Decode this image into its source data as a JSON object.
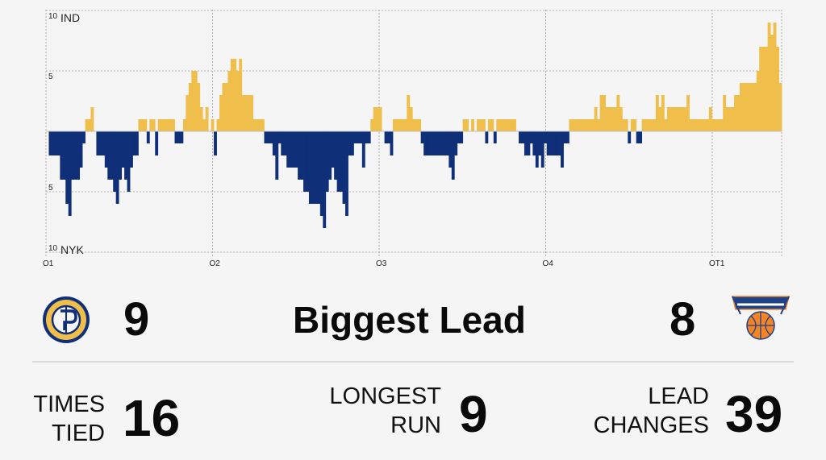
{
  "chart_data": {
    "type": "bar",
    "title": "",
    "xlabel": "",
    "ylabel": "",
    "top_team_label": "IND",
    "bottom_team_label": "NYK",
    "ylim": [
      -10,
      10
    ],
    "y_ticks": [
      {
        "value": 10,
        "label": "10"
      },
      {
        "value": 5,
        "label": "5"
      },
      {
        "value": -5,
        "label": "5"
      },
      {
        "value": -10,
        "label": "10"
      }
    ],
    "x_range_minutes": [
      0,
      53
    ],
    "period_ticks": [
      {
        "minute": 0,
        "label": "Q1"
      },
      {
        "minute": 12,
        "label": "Q2"
      },
      {
        "minute": 24,
        "label": "Q3"
      },
      {
        "minute": 36,
        "label": "Q4"
      },
      {
        "minute": 48,
        "label": "OT1"
      }
    ],
    "grid": true,
    "ind_color": "#F0BE4B",
    "nyk_color": "#0F2F78",
    "margin": [
      0,
      -2,
      -2,
      -2,
      -2,
      -4,
      -4,
      -6,
      -7,
      -4,
      -4,
      -4,
      -3,
      -1,
      1,
      1,
      2,
      0,
      -2,
      -2,
      -2,
      -3,
      -4,
      -4,
      -5,
      -6,
      -4,
      -3,
      -4,
      -5,
      -3,
      -2,
      -2,
      1,
      1,
      1,
      -1,
      1,
      1,
      -2,
      1,
      1,
      1,
      1,
      1,
      1,
      -1,
      -1,
      -1,
      1,
      3,
      4,
      5,
      5,
      4,
      2,
      1,
      2,
      0,
      1,
      -2,
      1,
      3,
      4,
      4,
      5,
      6,
      6,
      5,
      6,
      3,
      3,
      3,
      3,
      1,
      1,
      1,
      1,
      -1,
      -1,
      -1,
      -2,
      -4,
      -1,
      -2,
      -2,
      -3,
      -3,
      -3,
      -3,
      -4,
      -4,
      -5,
      -5,
      -6,
      -6,
      -6,
      -6,
      -7,
      -8,
      -5,
      -4,
      -3,
      -4,
      -5,
      -5,
      -6,
      -7,
      -2,
      -2,
      -1,
      -1,
      -1,
      -3,
      -1,
      -1,
      1,
      2,
      2,
      2,
      0,
      -1,
      -1,
      -2,
      1,
      1,
      1,
      1,
      1,
      3,
      2,
      1,
      1,
      1,
      -1,
      -2,
      -2,
      -2,
      -2,
      -2,
      -2,
      -2,
      -2,
      -2,
      -3,
      -4,
      -2,
      -1,
      -1,
      1,
      1,
      0,
      1,
      0,
      1,
      1,
      1,
      -1,
      1,
      1,
      -1,
      1,
      1,
      1,
      1,
      1,
      1,
      1,
      0,
      -1,
      -1,
      -2,
      -2,
      -1,
      -2,
      -3,
      -2,
      -3,
      -1,
      -2,
      -2,
      -2,
      -2,
      -2,
      -3,
      -1,
      -1,
      1,
      1,
      1,
      1,
      1,
      1,
      1,
      1,
      1,
      2,
      1,
      3,
      3,
      2,
      2,
      2,
      2,
      3,
      2,
      1,
      1,
      -1,
      1,
      1,
      -1,
      -1,
      1,
      1,
      1,
      1,
      1,
      3,
      2,
      3,
      1,
      2,
      2,
      2,
      2,
      2,
      2,
      2,
      3,
      1,
      1,
      1,
      1,
      1,
      1,
      1,
      2,
      1,
      1,
      1,
      1,
      3,
      2,
      2,
      2,
      3,
      3,
      4,
      4,
      4,
      4,
      4,
      4,
      5,
      7,
      7,
      7,
      9,
      8,
      9,
      7,
      4
    ]
  },
  "teams": {
    "home": {
      "logo_icon": "pacers-logo",
      "biggest_lead": "9"
    },
    "away": {
      "logo_icon": "knicks-logo",
      "biggest_lead": "8"
    }
  },
  "stats": {
    "biggest_lead_label": "Biggest Lead",
    "times_tied_label_1": "TIMES",
    "times_tied_label_2": "TIED",
    "times_tied_value": "16",
    "longest_run_label_1": "LONGEST",
    "longest_run_label_2": "RUN",
    "longest_run_value": "9",
    "lead_changes_label_1": "LEAD",
    "lead_changes_label_2": "CHANGES",
    "lead_changes_value": "39"
  }
}
